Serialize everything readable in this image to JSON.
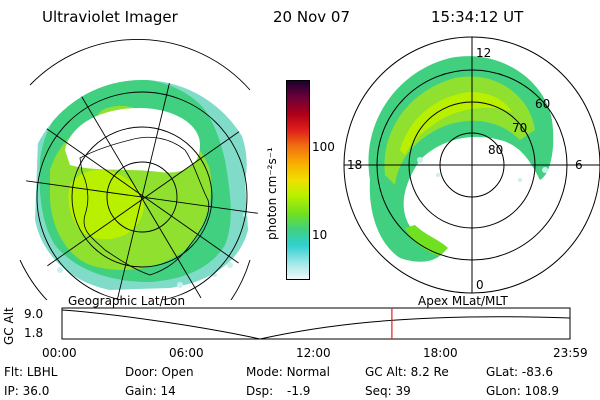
{
  "header": {
    "instrument": "Ultraviolet Imager",
    "date": "20 Nov 07",
    "time": "15:34:12 UT"
  },
  "colorbar": {
    "unit_label": "photon cm⁻²s⁻¹",
    "ticks": [
      "100",
      "10"
    ],
    "colors": [
      "#1a0030",
      "#6a0038",
      "#b00018",
      "#e0201a",
      "#f07010",
      "#f8b000",
      "#f0e000",
      "#b8f000",
      "#70e020",
      "#40d080",
      "#30d0d0",
      "#a0e8e8",
      "#f0f8f8"
    ]
  },
  "right_map": {
    "top_label": "12",
    "bottom_label": "0",
    "left_label": "18",
    "right_label": "6",
    "lat_labels": [
      "60",
      "70",
      "80"
    ]
  },
  "timeline": {
    "left_caption": "Geographic Lat/Lon",
    "right_caption": "Apex MLat/MLT",
    "y_axis_label": "GC Alt",
    "y_ticks": [
      "9.0",
      "1.8"
    ],
    "x_ticks": [
      "00:00",
      "06:00",
      "12:00",
      "18:00",
      "23:59"
    ],
    "current_time_fraction": 0.6494
  },
  "status": {
    "flt_label": "Flt:",
    "flt_value": "LBHL",
    "ip_label": "IP:",
    "ip_value": "36.0",
    "door_label": "Door:",
    "door_value": "Open",
    "gain_label": "Gain:",
    "gain_value": "14",
    "mode_label": "Mode:",
    "mode_value": "Normal",
    "dsp_label": "Dsp:",
    "dsp_value": "-1.9",
    "gcalt_label": "GC Alt:",
    "gcalt_value": "8.2 Re",
    "seq_label": "Seq:",
    "seq_value": "39",
    "glat_label": "GLat:",
    "glat_value": "-83.6",
    "glon_label": "GLon:",
    "glon_value": "108.9"
  }
}
